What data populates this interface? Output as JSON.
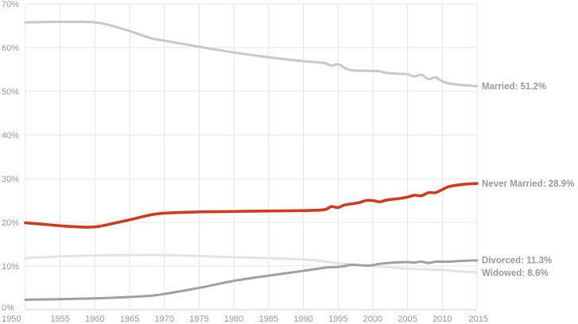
{
  "chart_data": {
    "type": "line",
    "title": "",
    "xlabel": "",
    "ylabel": "",
    "xlim": [
      1950,
      2015
    ],
    "ylim": [
      0,
      70
    ],
    "x_ticks": [
      1950,
      1955,
      1960,
      1965,
      1970,
      1975,
      1980,
      1985,
      1990,
      1995,
      2000,
      2005,
      2010,
      2015
    ],
    "y_ticks": [
      0,
      10,
      20,
      30,
      40,
      50,
      60,
      70
    ],
    "y_tick_labels": [
      "0%",
      "10%",
      "20%",
      "30%",
      "40%",
      "50%",
      "60%",
      "70%"
    ],
    "grid": true,
    "legend": "none (series labeled at line ends)",
    "series": [
      {
        "name": "Married",
        "end_label": "Married: 51.2%",
        "color": "#c8c8c8",
        "label_color": "#9a9a9a",
        "x": [
          1950,
          1955,
          1958,
          1960,
          1962,
          1965,
          1968,
          1970,
          1975,
          1980,
          1985,
          1990,
          1993,
          1994,
          1995,
          1996,
          1997,
          1999,
          2001,
          2002,
          2004,
          2005,
          2006,
          2007,
          2008,
          2009,
          2010,
          2011,
          2013,
          2015
        ],
        "values": [
          65.8,
          65.9,
          65.9,
          65.8,
          65.2,
          63.8,
          62.2,
          61.6,
          60.2,
          58.9,
          57.8,
          56.9,
          56.5,
          55.9,
          56.2,
          55.3,
          54.8,
          54.7,
          54.6,
          54.2,
          54.0,
          53.9,
          53.4,
          53.8,
          52.8,
          53.2,
          52.3,
          51.8,
          51.4,
          51.2
        ]
      },
      {
        "name": "Never Married",
        "end_label": "Never Married: 28.9%",
        "color": "#d03a1e",
        "label_color": "#9a9a9a",
        "x": [
          1950,
          1953,
          1956,
          1959,
          1961,
          1965,
          1968,
          1970,
          1975,
          1980,
          1985,
          1990,
          1993,
          1994,
          1995,
          1996,
          1998,
          1999,
          2000,
          2001,
          2002,
          2004,
          2005,
          2006,
          2007,
          2008,
          2009,
          2010,
          2011,
          2013,
          2015
        ],
        "values": [
          19.9,
          19.5,
          19.1,
          18.9,
          19.2,
          20.6,
          21.7,
          22.1,
          22.4,
          22.5,
          22.6,
          22.7,
          22.9,
          23.6,
          23.4,
          24.0,
          24.5,
          25.0,
          25.0,
          24.7,
          25.1,
          25.5,
          25.8,
          26.2,
          26.1,
          26.8,
          26.8,
          27.5,
          28.2,
          28.7,
          28.9
        ]
      },
      {
        "name": "Divorced",
        "end_label": "Divorced: 11.3%",
        "color": "#a0a0a0",
        "label_color": "#9a9a9a",
        "x": [
          1950,
          1955,
          1960,
          1965,
          1968,
          1970,
          1975,
          1980,
          1985,
          1990,
          1993,
          1995,
          1996,
          1997,
          1999,
          2000,
          2001,
          2003,
          2005,
          2006,
          2007,
          2008,
          2009,
          2010,
          2011,
          2013,
          2015
        ],
        "values": [
          2.3,
          2.4,
          2.6,
          2.9,
          3.2,
          3.6,
          5.0,
          6.6,
          7.8,
          8.9,
          9.6,
          9.8,
          10.0,
          10.3,
          10.1,
          10.2,
          10.5,
          10.8,
          10.9,
          10.8,
          11.0,
          10.7,
          11.0,
          11.0,
          11.0,
          11.2,
          11.3
        ]
      },
      {
        "name": "Widowed",
        "end_label": "Widowed: 8.6%",
        "color": "#e3e3e3",
        "label_color": "#9a9a9a",
        "x": [
          1950,
          1955,
          1960,
          1965,
          1970,
          1975,
          1980,
          1985,
          1990,
          1993,
          1995,
          2000,
          2005,
          2010,
          2013,
          2015
        ],
        "values": [
          11.8,
          12.2,
          12.4,
          12.5,
          12.5,
          12.3,
          12.0,
          11.8,
          11.5,
          11.1,
          10.6,
          10.0,
          9.4,
          9.1,
          8.7,
          8.6
        ]
      }
    ]
  }
}
